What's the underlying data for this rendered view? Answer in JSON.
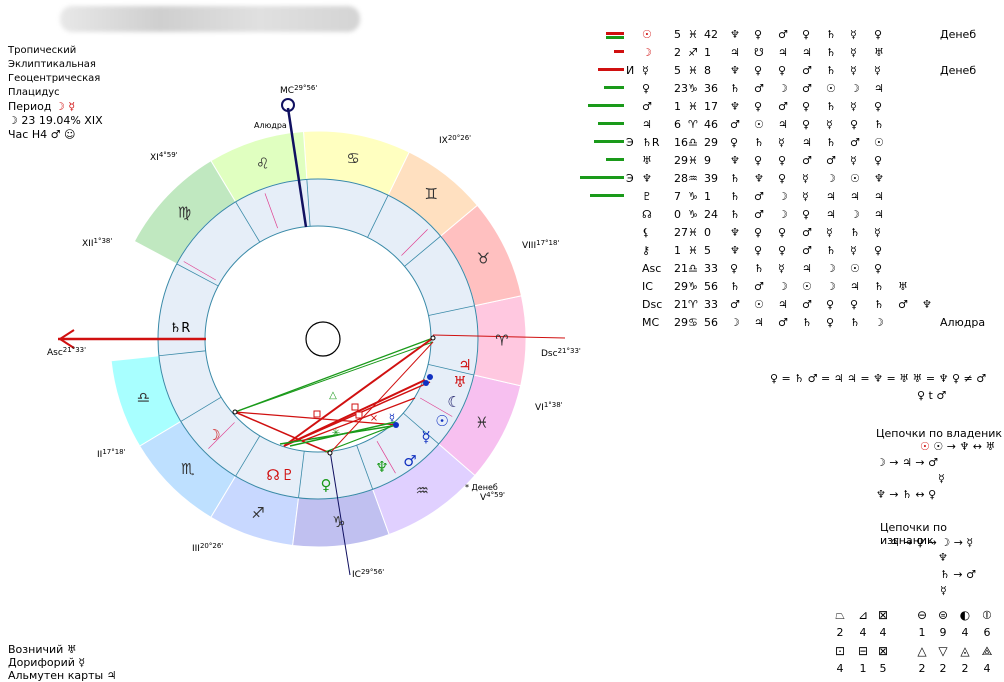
{
  "info": {
    "zodiac": "Тропический",
    "coords": "Эклиптикальная",
    "center": "Геоцентрическая",
    "houses": "Плацидус",
    "period_label": "Период",
    "period_glyphs": "☽ ☿",
    "moon_line": "☽  23 19.04% XIX",
    "hour_label": "Час Н4",
    "hour_glyphs": "♂ ☺"
  },
  "wheel": {
    "mc": "MC",
    "mc_deg": "29°56'",
    "ic": "IC",
    "ic_deg": "29°56'",
    "asc": "Asc",
    "asc_deg": "21°33'",
    "dsc": "Dsc",
    "dsc_deg": "21°33'",
    "alyudra": "Алюдра",
    "deneb": "Денеб",
    "cusps": [
      {
        "label": "II",
        "deg": "17°18'"
      },
      {
        "label": "III",
        "deg": "20°26'"
      },
      {
        "label": "V",
        "deg": "4°59'"
      },
      {
        "label": "VI",
        "deg": "1°38'"
      },
      {
        "label": "VIII",
        "deg": "17°18'"
      },
      {
        "label": "IX",
        "deg": "20°26'"
      },
      {
        "label": "XI",
        "deg": "4°59'"
      },
      {
        "label": "XII",
        "deg": "1°38'"
      }
    ],
    "signs": [
      "♈",
      "♉",
      "♊",
      "♋",
      "♌",
      "♍",
      "♎",
      "♏",
      "♐",
      "♑",
      "♒",
      "♓"
    ],
    "planets_in_chart": {
      "saturn": "♄R",
      "moon": "☽",
      "node": "☊",
      "pluto": "♇",
      "venus": "♀",
      "neptune": "♆",
      "mars": "♂",
      "mercury": "☿",
      "sun": "☉",
      "jupiter": "♃",
      "uranus": "♅"
    }
  },
  "table": {
    "rows": [
      {
        "mark": "",
        "glyph": "☉",
        "deg": "5",
        "sign": "♓",
        "min": "42",
        "cells": [
          "♆",
          "♀",
          "♂",
          "♀",
          "♄",
          "☿",
          "♀"
        ],
        "extra": "",
        "star": "Денеб",
        "bars": [
          {
            "c": "#d01010",
            "w": 18
          },
          {
            "c": "#1a9a1a",
            "w": 18
          }
        ]
      },
      {
        "mark": "",
        "glyph": "☽",
        "deg": "2",
        "sign": "♐",
        "min": "1",
        "cells": [
          "♃",
          "☋",
          "♃",
          "♃",
          "♄",
          "☿",
          "♅"
        ],
        "extra": "",
        "star": "",
        "bars": [
          {
            "c": "#d01010",
            "w": 10
          }
        ]
      },
      {
        "mark": "И",
        "glyph": "☿",
        "deg": "5",
        "sign": "♓",
        "min": "8",
        "cells": [
          "♆",
          "♀",
          "♀",
          "♂",
          "♄",
          "☿",
          "☿"
        ],
        "extra": "",
        "star": "Денеб",
        "bars": [
          {
            "c": "#d01010",
            "w": 26
          }
        ]
      },
      {
        "mark": "",
        "glyph": "♀",
        "deg": "23",
        "sign": "♑",
        "min": "36",
        "cells": [
          "♄",
          "♂",
          "☽",
          "♂",
          "☉",
          "☽",
          "♃"
        ],
        "extra": "",
        "star": "",
        "bars": [
          {
            "c": "#1a9a1a",
            "w": 20
          }
        ]
      },
      {
        "mark": "",
        "glyph": "♂",
        "deg": "1",
        "sign": "♓",
        "min": "17",
        "cells": [
          "♆",
          "♀",
          "♂",
          "♀",
          "♄",
          "☿",
          "♀"
        ],
        "extra": "",
        "star": "",
        "bars": [
          {
            "c": "#1a9a1a",
            "w": 36
          }
        ]
      },
      {
        "mark": "",
        "glyph": "♃",
        "deg": "6",
        "sign": "♈",
        "min": "46",
        "cells": [
          "♂",
          "☉",
          "♃",
          "♀",
          "☿",
          "♀",
          "♄"
        ],
        "extra": "",
        "star": "",
        "bars": [
          {
            "c": "#1a9a1a",
            "w": 26
          }
        ]
      },
      {
        "mark": "Э",
        "glyph": "♄R",
        "deg": "16",
        "sign": "♎",
        "min": "29",
        "cells": [
          "♀",
          "♄",
          "☿",
          "♃",
          "♄",
          "♂",
          "☉"
        ],
        "extra": "",
        "star": "",
        "bars": [
          {
            "c": "#1a9a1a",
            "w": 30
          }
        ]
      },
      {
        "mark": "",
        "glyph": "♅",
        "deg": "29",
        "sign": "♓",
        "min": "9",
        "cells": [
          "♆",
          "♀",
          "♀",
          "♂",
          "♂",
          "☿",
          "♀"
        ],
        "extra": "",
        "star": "",
        "bars": [
          {
            "c": "#1a9a1a",
            "w": 18
          }
        ]
      },
      {
        "mark": "Э",
        "glyph": "♆",
        "deg": "28",
        "sign": "♒",
        "min": "39",
        "cells": [
          "♄",
          "♆",
          "♀",
          "☿",
          "☽",
          "☉",
          "♆"
        ],
        "extra": "",
        "star": "",
        "bars": [
          {
            "c": "#1a9a1a",
            "w": 44
          }
        ]
      },
      {
        "mark": "",
        "glyph": "♇",
        "deg": "7",
        "sign": "♑",
        "min": "1",
        "cells": [
          "♄",
          "♂",
          "☽",
          "☿",
          "♃",
          "♃",
          "♃"
        ],
        "extra": "",
        "star": "",
        "bars": [
          {
            "c": "#1a9a1a",
            "w": 34
          }
        ]
      },
      {
        "mark": "",
        "glyph": "☊",
        "deg": "0",
        "sign": "♑",
        "min": "24",
        "cells": [
          "♄",
          "♂",
          "☽",
          "♀",
          "♃",
          "☽",
          "♃"
        ],
        "extra": "",
        "star": "",
        "bars": []
      },
      {
        "mark": "",
        "glyph": "⚸",
        "deg": "27",
        "sign": "♓",
        "min": "0",
        "cells": [
          "♆",
          "♀",
          "♀",
          "♂",
          "☿",
          "♄",
          "☿"
        ],
        "extra": "",
        "star": "",
        "bars": []
      },
      {
        "mark": "",
        "glyph": "⚷",
        "deg": "1",
        "sign": "♓",
        "min": "5",
        "cells": [
          "♆",
          "♀",
          "♀",
          "♂",
          "♄",
          "☿",
          "♀"
        ],
        "extra": "",
        "star": "",
        "bars": []
      },
      {
        "mark": "",
        "glyph": "Asc",
        "deg": "21",
        "sign": "♎",
        "min": "33",
        "cells": [
          "♀",
          "♄",
          "☿",
          "♃",
          "☽",
          "☉",
          "♀"
        ],
        "extra": "",
        "star": "",
        "bars": []
      },
      {
        "mark": "",
        "glyph": "IC",
        "deg": "29",
        "sign": "♑",
        "min": "56",
        "cells": [
          "♄",
          "♂",
          "☽",
          "☉",
          "☽",
          "♃",
          "♄",
          "♅"
        ],
        "extra": "",
        "star": "",
        "bars": []
      },
      {
        "mark": "",
        "glyph": "Dsc",
        "deg": "21",
        "sign": "♈",
        "min": "33",
        "cells": [
          "♂",
          "☉",
          "♃",
          "♂",
          "♀",
          "♀",
          "♄",
          "♂",
          "♆"
        ],
        "extra": "",
        "star": "",
        "bars": []
      },
      {
        "mark": "",
        "glyph": "MC",
        "deg": "29",
        "sign": "♋",
        "min": "56",
        "cells": [
          "☽",
          "♃",
          "♂",
          "♄",
          "♀",
          "♄",
          "☽"
        ],
        "extra": "",
        "star": "Алюдра",
        "bars": []
      }
    ]
  },
  "eq": {
    "line1": "♀ = ♄ ♂ = ♃ ♃ = ♆ = ♅ ♅ = ♆ ♀ ≠ ♂",
    "line2": "♀ t ♂"
  },
  "chains": {
    "ownership_title": "Цепочки по владеник",
    "ownership_l1": "☉ → ♆ ↔ ♅",
    "ownership_l2": "☽ → ♃ → ♂",
    "ownership_l3": "☿",
    "ownership_l4": "♆ → ♄ ↔ ♀",
    "exile_title": "Цепочки по изгнаник",
    "exile_l1": "♃ → ♀ → ☽ → ☿",
    "exile_l2": "♆",
    "exile_l3": "♄ → ♂",
    "exile_l4": "☿"
  },
  "bottom": {
    "vozn_label": "Возничий",
    "vozn_val": "♅",
    "dor_label": "Дорифорий",
    "dor_val": "☿",
    "alm_label": "Альмутен карты",
    "alm_val": "♃"
  },
  "icons": [
    {
      "g": "⏢",
      "n": "2"
    },
    {
      "g": "⊿",
      "n": "4"
    },
    {
      "g": "⊠",
      "n": "4"
    },
    {
      "g": "⊖",
      "n": "1"
    },
    {
      "g": "⊜",
      "n": "9"
    },
    {
      "g": "◐",
      "n": "4"
    },
    {
      "g": "⦶",
      "n": "6"
    },
    {
      "g": "⊡",
      "n": "4"
    },
    {
      "g": "⊟",
      "n": "1"
    },
    {
      "g": "⊠",
      "n": "5"
    },
    {
      "g": "△",
      "n": "2"
    },
    {
      "g": "▽",
      "n": "2"
    },
    {
      "g": "◬",
      "n": "2"
    },
    {
      "g": "⟁",
      "n": "4"
    }
  ],
  "colors": {
    "red": "#d01010",
    "green": "#1a9a1a",
    "navy": "#101060"
  }
}
